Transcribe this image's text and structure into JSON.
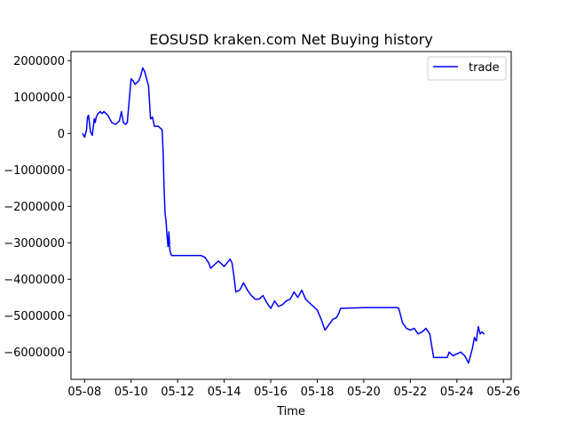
{
  "chart_data": {
    "type": "line",
    "title": "EOSUSD kraken.com Net Buying history",
    "xlabel": "Time",
    "ylabel": "",
    "xlim": [
      "05-07 10:00",
      "05-26 08:00"
    ],
    "ylim": [
      -6750000,
      2250000
    ],
    "xticks": [
      "05-08",
      "05-10",
      "05-12",
      "05-14",
      "05-16",
      "05-18",
      "05-20",
      "05-22",
      "05-24",
      "05-26"
    ],
    "yticks": [
      2000000,
      1000000,
      0,
      -1000000,
      -2000000,
      -3000000,
      -4000000,
      -5000000,
      -6000000
    ],
    "ytick_labels": [
      "2000000",
      "1000000",
      "0",
      "−1000000",
      "−2000000",
      "−3000000",
      "−4000000",
      "−5000000",
      "−6000000"
    ],
    "legend": {
      "position": "top-right",
      "entries": [
        "trade"
      ]
    },
    "grid": false,
    "colors": {
      "trade": "#0000ff",
      "axes": "#000000",
      "background": "#ffffff"
    },
    "series": [
      {
        "name": "trade",
        "x": [
          "05-07 22:00",
          "05-08 00:00",
          "05-08 02:00",
          "05-08 03:00",
          "05-08 04:00",
          "05-08 05:00",
          "05-08 06:00",
          "05-08 08:00",
          "05-08 10:00",
          "05-08 11:00",
          "05-08 12:00",
          "05-08 14:00",
          "05-08 16:00",
          "05-08 18:00",
          "05-08 20:00",
          "05-09 00:00",
          "05-09 04:00",
          "05-09 08:00",
          "05-09 12:00",
          "05-09 14:00",
          "05-09 16:00",
          "05-09 18:00",
          "05-09 20:00",
          "05-10 00:00",
          "05-10 02:00",
          "05-10 04:00",
          "05-10 06:00",
          "05-10 08:00",
          "05-10 10:00",
          "05-10 12:00",
          "05-10 14:00",
          "05-10 16:00",
          "05-10 18:00",
          "05-10 20:00",
          "05-10 22:00",
          "05-11 00:00",
          "05-11 04:00",
          "05-11 06:00",
          "05-11 08:00",
          "05-11 09:00",
          "05-11 10:00",
          "05-11 11:00",
          "05-11 12:00",
          "05-11 13:00",
          "05-11 14:00",
          "05-11 15:00",
          "05-11 16:00",
          "05-11 17:00",
          "05-11 18:00",
          "05-11 20:00",
          "05-12 00:00",
          "05-12 12:00",
          "05-13 00:00",
          "05-13 04:00",
          "05-13 08:00",
          "05-13 10:00",
          "05-13 14:00",
          "05-13 18:00",
          "05-14 00:00",
          "05-14 06:00",
          "05-14 08:00",
          "05-14 10:00",
          "05-14 12:00",
          "05-14 16:00",
          "05-14 20:00",
          "05-15 00:00",
          "05-15 04:00",
          "05-15 08:00",
          "05-15 12:00",
          "05-15 16:00",
          "05-15 20:00",
          "05-16 00:00",
          "05-16 04:00",
          "05-16 08:00",
          "05-16 12:00",
          "05-16 16:00",
          "05-16 20:00",
          "05-17 00:00",
          "05-17 04:00",
          "05-17 08:00",
          "05-17 12:00",
          "05-17 16:00",
          "05-17 20:00",
          "05-18 00:00",
          "05-18 04:00",
          "05-18 08:00",
          "05-18 12:00",
          "05-18 16:00",
          "05-18 20:00",
          "05-18 22:00",
          "05-19 00:00",
          "05-20 00:00",
          "05-21 00:00",
          "05-21 08:00",
          "05-21 10:00",
          "05-21 12:00",
          "05-21 16:00",
          "05-21 20:00",
          "05-22 00:00",
          "05-22 04:00",
          "05-22 08:00",
          "05-22 12:00",
          "05-22 16:00",
          "05-22 20:00",
          "05-23 00:00",
          "05-23 08:00",
          "05-23 14:00",
          "05-23 16:00",
          "05-23 20:00",
          "05-24 00:00",
          "05-24 04:00",
          "05-24 08:00",
          "05-24 12:00",
          "05-24 14:00",
          "05-24 16:00",
          "05-24 18:00",
          "05-24 20:00",
          "05-24 22:00",
          "05-25 00:00",
          "05-25 02:00",
          "05-25 04:00"
        ],
        "values": [
          0,
          -100000,
          100000,
          450000,
          500000,
          300000,
          50000,
          -50000,
          400000,
          300000,
          450000,
          550000,
          600000,
          550000,
          600000,
          500000,
          300000,
          250000,
          350000,
          600000,
          300000,
          250000,
          300000,
          1500000,
          1450000,
          1350000,
          1400000,
          1450000,
          1600000,
          1800000,
          1700000,
          1500000,
          1300000,
          400000,
          450000,
          200000,
          200000,
          150000,
          100000,
          -500000,
          -1500000,
          -2200000,
          -2400000,
          -2800000,
          -3100000,
          -2700000,
          -3200000,
          -3300000,
          -3350000,
          -3350000,
          -3350000,
          -3350000,
          -3350000,
          -3400000,
          -3550000,
          -3700000,
          -3600000,
          -3500000,
          -3650000,
          -3450000,
          -3550000,
          -3900000,
          -4350000,
          -4300000,
          -4100000,
          -4300000,
          -4450000,
          -4550000,
          -4550000,
          -4450000,
          -4650000,
          -4800000,
          -4600000,
          -4750000,
          -4700000,
          -4600000,
          -4550000,
          -4350000,
          -4500000,
          -4300000,
          -4550000,
          -4650000,
          -4750000,
          -4850000,
          -5100000,
          -5400000,
          -5250000,
          -5100000,
          -5050000,
          -4950000,
          -4800000,
          -4780000,
          -4780000,
          -4780000,
          -4780000,
          -4800000,
          -5200000,
          -5350000,
          -5400000,
          -5350000,
          -5500000,
          -5450000,
          -5350000,
          -5500000,
          -6150000,
          -6150000,
          -6150000,
          -6000000,
          -6100000,
          -6050000,
          -6000000,
          -6100000,
          -6300000,
          -6100000,
          -5900000,
          -5600000,
          -5700000,
          -5300000,
          -5500000,
          -5450000,
          -5500000
        ]
      }
    ]
  }
}
